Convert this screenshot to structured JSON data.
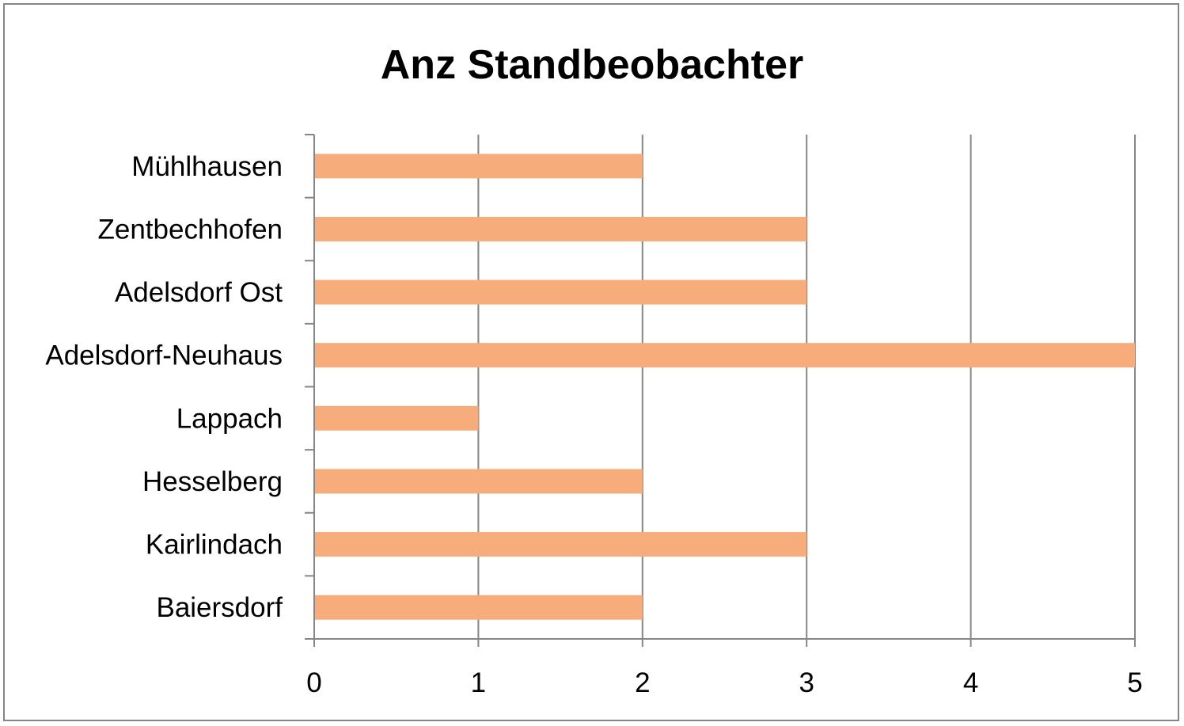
{
  "chart_data": {
    "type": "bar",
    "orientation": "horizontal",
    "title": "Anz Standbeobachter",
    "categories": [
      "Mühlhausen",
      "Zentbechhofen",
      "Adelsdorf Ost",
      "Adelsdorf-Neuhaus",
      "Lappach",
      "Hesselberg",
      "Kairlindach",
      "Baiersdorf"
    ],
    "values": [
      2,
      3,
      3,
      5,
      1,
      2,
      3,
      2
    ],
    "xlim": [
      0,
      5
    ],
    "xticks": [
      "0",
      "1",
      "2",
      "3",
      "4",
      "5"
    ],
    "xlabel": "",
    "ylabel": "",
    "grid": "vertical major gridlines",
    "legend": "none",
    "colors": {
      "bar": "#F7AC7B",
      "grid": "#868686",
      "frame": "#868686"
    }
  }
}
